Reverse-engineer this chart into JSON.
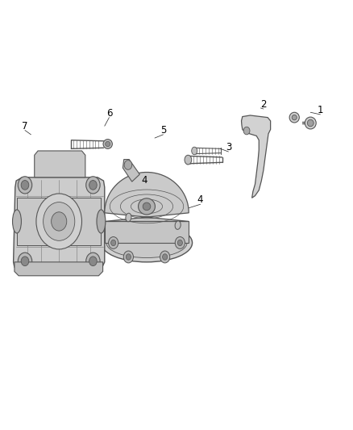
{
  "background_color": "#ffffff",
  "line_color": "#555555",
  "label_color": "#000000",
  "fig_width": 4.38,
  "fig_height": 5.33,
  "dpi": 100
}
